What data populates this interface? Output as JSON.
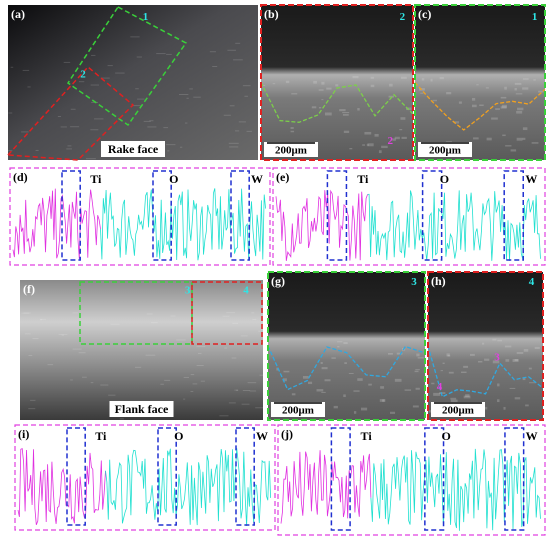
{
  "panels": [
    {
      "label": "(a)",
      "caption": "Rake face",
      "markers": [
        "1",
        "2"
      ]
    },
    {
      "label": "(b)",
      "scale": "200μm",
      "markers": [
        "2",
        "2"
      ]
    },
    {
      "label": "(c)",
      "scale": "200μm",
      "markers": [
        "1"
      ]
    },
    {
      "label": "(d)",
      "elements": [
        "Ti",
        "O",
        "W"
      ]
    },
    {
      "label": "(e)",
      "elements": [
        "Ti",
        "O",
        "W"
      ]
    },
    {
      "label": "(f)",
      "caption": "Flank face",
      "markers": [
        "3",
        "4"
      ]
    },
    {
      "label": "(g)",
      "scale": "200μm",
      "markers": [
        "3"
      ]
    },
    {
      "label": "(h)",
      "scale": "200μm",
      "markers": [
        "4",
        "3",
        "4"
      ]
    },
    {
      "label": "(i)",
      "elements": [
        "Ti",
        "O",
        "W"
      ]
    },
    {
      "label": "(j)",
      "elements": [
        "Ti",
        "O",
        "W"
      ]
    }
  ]
}
